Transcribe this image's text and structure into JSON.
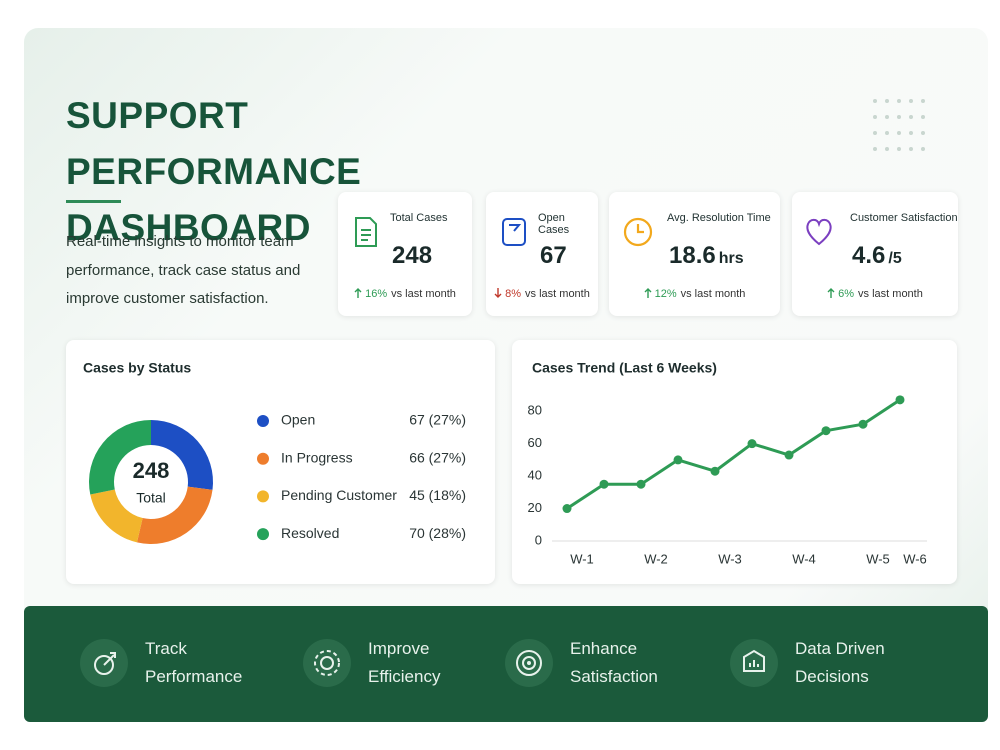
{
  "header": {
    "title": "SUPPORT PERFORMANCE DASHBOARD",
    "subtitle": "Real-time insights to monitor team performance, track case status  and improve customer satisfaction."
  },
  "kpis": [
    {
      "label": "Total Cases",
      "value": "248",
      "unit": null,
      "change": "16%",
      "direction": "up",
      "note": "vs last month"
    },
    {
      "label": "Open Cases",
      "value": "67",
      "unit": null,
      "change": "8%",
      "direction": "down",
      "note": "vs last month"
    },
    {
      "label": "Avg. Resolution Time",
      "value": "18.6",
      "unit": "hrs",
      "change": "12%",
      "direction": "up",
      "note": "vs last month"
    },
    {
      "label": "Customer Satisfaction",
      "value": "4.6",
      "unit": "/5",
      "change": "6%",
      "direction": "up",
      "note": "vs last month"
    }
  ],
  "chart_data": [
    {
      "type": "donut",
      "title": "Cases by Status",
      "center_value": "248",
      "center_label": "Total",
      "categories": [
        "Open",
        "In Progress",
        "Pending Customer",
        "Resolved"
      ],
      "values": [
        67,
        66,
        45,
        70
      ],
      "value_labels": [
        "67 (27%)",
        "66 (27%)",
        "45 (18%)",
        "70 (28%)"
      ],
      "colors": [
        "#1d4fc4",
        "#ee7d2c",
        "#f2b52c",
        "#25a25a"
      ]
    },
    {
      "type": "line",
      "title": "Cases Trend (Last 6 Weeks)",
      "categories": [
        "W-1",
        null,
        "W-2",
        null,
        "W-3",
        null,
        "W-4",
        null,
        "W-5",
        "W-6"
      ],
      "values": [
        20,
        35,
        35,
        50,
        43,
        60,
        53,
        68,
        72,
        87
      ],
      "color": "#2e9b55",
      "ylim": [
        0,
        90
      ],
      "yticks": [
        0,
        20,
        40,
        60,
        80
      ],
      "grid": false
    }
  ],
  "footer": [
    {
      "lines": [
        "Track",
        "Performance"
      ]
    },
    {
      "lines": [
        "Improve",
        "Efficiency"
      ]
    },
    {
      "lines": [
        "Enhance",
        "Satisfaction"
      ]
    },
    {
      "lines": [
        "Data Driven",
        "Decisions"
      ]
    }
  ]
}
